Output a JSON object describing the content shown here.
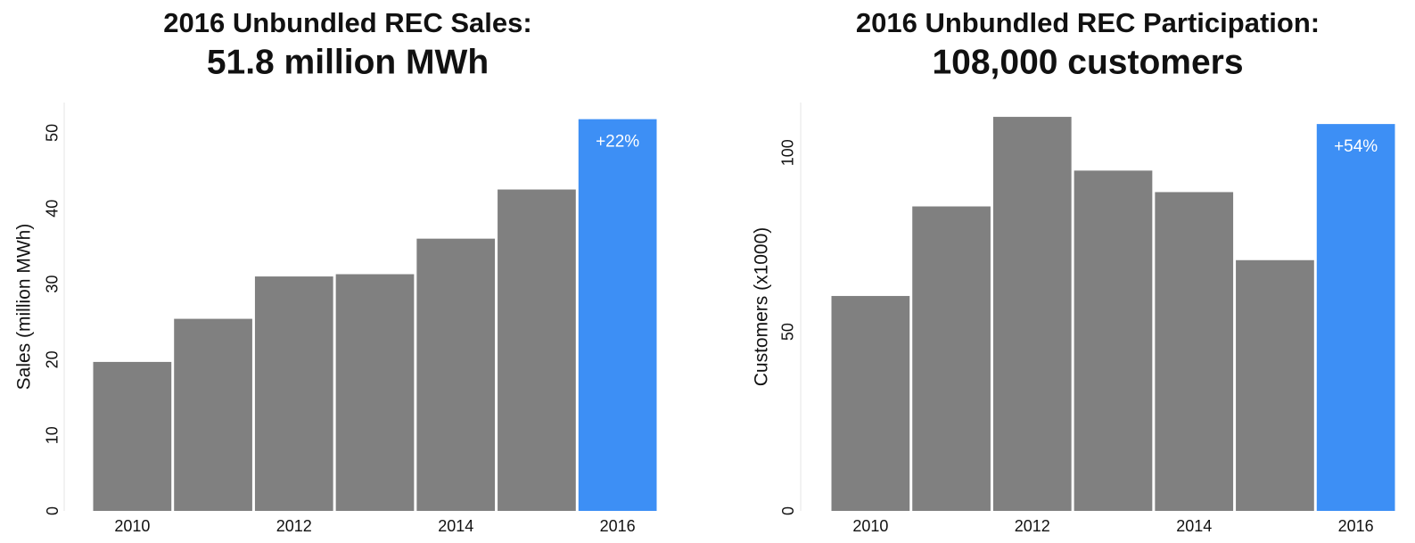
{
  "chart_data": [
    {
      "type": "bar",
      "title": "2016 Unbundled REC Sales:",
      "subtitle": "51.8 million MWh",
      "y_label": "Sales (million MWh)",
      "categories": [
        "2010",
        null,
        "2012",
        null,
        "2014",
        null,
        "2016"
      ],
      "values": [
        19.7,
        25.4,
        31.0,
        31.3,
        36.0,
        42.5,
        51.8
      ],
      "colors": [
        "#808080",
        "#808080",
        "#808080",
        "#808080",
        "#808080",
        "#808080",
        "#3d8ff5"
      ],
      "annotations": [
        {
          "category": "2016",
          "text": "+22%"
        }
      ],
      "ylim": [
        0,
        54
      ],
      "yticks": [
        0,
        10,
        20,
        30,
        40,
        50
      ],
      "grid": false
    },
    {
      "type": "bar",
      "title": "2016 Unbundled REC Participation:",
      "subtitle": "108,000 customers",
      "y_label": "Customers (x1000)",
      "categories": [
        "2010",
        null,
        "2012",
        null,
        "2014",
        null,
        "2016"
      ],
      "values": [
        60,
        85,
        110,
        95,
        89,
        70,
        108
      ],
      "colors": [
        "#808080",
        "#808080",
        "#808080",
        "#808080",
        "#808080",
        "#808080",
        "#3d8ff5"
      ],
      "annotations": [
        {
          "category": "2016",
          "text": "+54%"
        }
      ],
      "ylim": [
        0,
        114
      ],
      "yticks": [
        0,
        50,
        100
      ],
      "grid": false
    }
  ]
}
